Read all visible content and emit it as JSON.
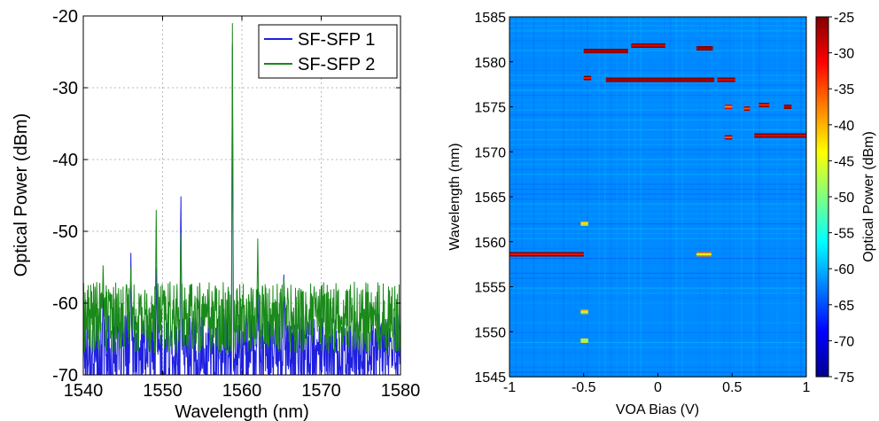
{
  "chart_data": [
    {
      "type": "line",
      "xlabel": "Wavelength (nm)",
      "ylabel": "Optical Power (dBm)",
      "xlim": [
        1540,
        1580
      ],
      "ylim": [
        -70,
        -20
      ],
      "xticks": [
        1540,
        1550,
        1560,
        1570,
        1580
      ],
      "xtick_labels": [
        "1540",
        "1550",
        "1560",
        "1570",
        "1580"
      ],
      "yticks": [
        -70,
        -60,
        -50,
        -40,
        -30,
        -20
      ],
      "ytick_labels": [
        "-70",
        "-60",
        "-50",
        "-40",
        "-30",
        "-20"
      ],
      "grid": true,
      "legend_position": "top-right",
      "noise_floor": {
        "series_1": {
          "mean": -66,
          "range": [
            -70,
            -61
          ]
        },
        "series_2": {
          "mean": -62,
          "range": [
            -68,
            -58
          ]
        }
      },
      "series": [
        {
          "name": "SF-SFP 1",
          "color": "#1f1fe0",
          "peaks": [
            {
              "x": 1542.5,
              "y": -58
            },
            {
              "x": 1546.0,
              "y": -53
            },
            {
              "x": 1549.2,
              "y": -55
            },
            {
              "x": 1552.3,
              "y": -43
            },
            {
              "x": 1558.8,
              "y": -24
            },
            {
              "x": 1562.0,
              "y": -58
            },
            {
              "x": 1565.3,
              "y": -55
            }
          ]
        },
        {
          "name": "SF-SFP 2",
          "color": "#1a8a1a",
          "peaks": [
            {
              "x": 1542.5,
              "y": -54
            },
            {
              "x": 1546.0,
              "y": -55
            },
            {
              "x": 1549.2,
              "y": -47
            },
            {
              "x": 1552.3,
              "y": -49
            },
            {
              "x": 1555.5,
              "y": -62
            },
            {
              "x": 1558.8,
              "y": -21
            },
            {
              "x": 1562.0,
              "y": -51
            },
            {
              "x": 1565.3,
              "y": -56
            }
          ]
        }
      ]
    },
    {
      "type": "heatmap",
      "xlabel": "VOA Bias (V)",
      "ylabel": "Wavelength (nm)",
      "xlim": [
        -1,
        1
      ],
      "ylim": [
        1545,
        1585
      ],
      "xticks": [
        -1,
        -0.5,
        0,
        0.5,
        1
      ],
      "xtick_labels": [
        "-1",
        "-0.5",
        "0",
        "0.5",
        "1"
      ],
      "yticks": [
        1545,
        1550,
        1555,
        1560,
        1565,
        1570,
        1575,
        1580,
        1585
      ],
      "ytick_labels": [
        "1545",
        "1550",
        "1555",
        "1560",
        "1565",
        "1570",
        "1575",
        "1580",
        "1585"
      ],
      "colorbar": {
        "label": "Optical Power (dBm)",
        "range": [
          -75,
          -25
        ],
        "ticks": [
          -25,
          -30,
          -35,
          -40,
          -45,
          -50,
          -55,
          -60,
          -65,
          -70,
          -75
        ],
        "tick_labels": [
          "-25",
          "-30",
          "-35",
          "-40",
          "-45",
          "-50",
          "-55",
          "-60",
          "-65",
          "-70",
          "-75"
        ],
        "colormap": "jet"
      },
      "background_level": -62,
      "features": [
        {
          "x_range": [
            -0.5,
            -0.2
          ],
          "wavelength": 1581.2,
          "level": -28
        },
        {
          "x_range": [
            -0.18,
            0.05
          ],
          "wavelength": 1581.8,
          "level": -30
        },
        {
          "x_range": [
            0.26,
            0.37
          ],
          "wavelength": 1581.5,
          "level": -27
        },
        {
          "x_range": [
            -0.5,
            -0.45
          ],
          "wavelength": 1578.2,
          "level": -32
        },
        {
          "x_range": [
            -0.35,
            0.38
          ],
          "wavelength": 1578.0,
          "level": -27
        },
        {
          "x_range": [
            0.4,
            0.52
          ],
          "wavelength": 1578.0,
          "level": -30
        },
        {
          "x_range": [
            0.45,
            0.5
          ],
          "wavelength": 1575.0,
          "level": -38
        },
        {
          "x_range": [
            0.58,
            0.62
          ],
          "wavelength": 1574.8,
          "level": -35
        },
        {
          "x_range": [
            0.68,
            0.75
          ],
          "wavelength": 1575.2,
          "level": -33
        },
        {
          "x_range": [
            0.85,
            0.9
          ],
          "wavelength": 1575.0,
          "level": -28
        },
        {
          "x_range": [
            0.45,
            0.5
          ],
          "wavelength": 1571.6,
          "level": -35
        },
        {
          "x_range": [
            0.65,
            1.0
          ],
          "wavelength": 1571.8,
          "level": -30
        },
        {
          "x_range": [
            -1.0,
            -0.5
          ],
          "wavelength": 1558.6,
          "level": -32
        },
        {
          "x_range": [
            0.26,
            0.36
          ],
          "wavelength": 1558.6,
          "level": -45
        },
        {
          "x_range": [
            -0.52,
            -0.47
          ],
          "wavelength": 1562.0,
          "level": -48
        },
        {
          "x_range": [
            -0.52,
            -0.47
          ],
          "wavelength": 1552.2,
          "level": -48
        },
        {
          "x_range": [
            -0.52,
            -0.47
          ],
          "wavelength": 1549.0,
          "level": -50
        }
      ]
    }
  ]
}
